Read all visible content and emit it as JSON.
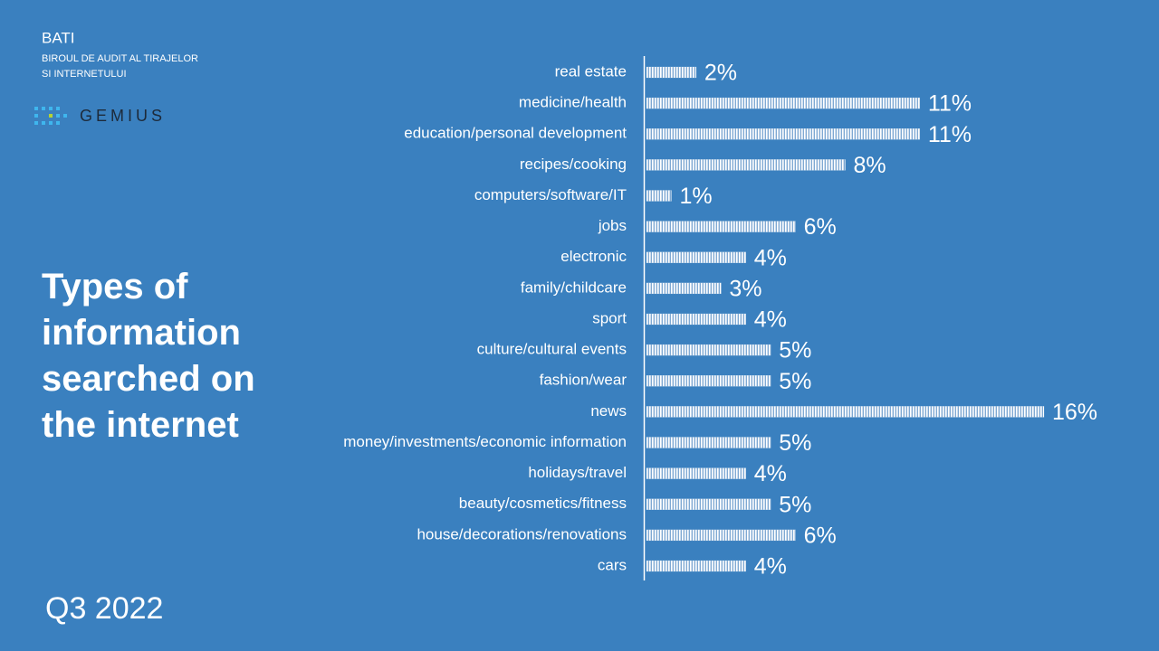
{
  "header": {
    "org": "BATI",
    "org_full": [
      "BIROUL DE AUDIT AL TIRAJELOR",
      "SI INTERNETULUI"
    ],
    "logo": "GEMIUS"
  },
  "footer": "Q3 2022",
  "chart_data": {
    "type": "hbar",
    "title": "Types of information searched on the internet",
    "categories": [
      "real estate",
      "medicine/health",
      "education/personal development",
      "recipes/cooking",
      "computers/software/IT",
      "jobs",
      "electronic",
      "family/childcare",
      "sport",
      "culture/cultural events",
      "fashion/wear",
      "news",
      "money/investments/economic information",
      "holidays/travel",
      "beauty/cosmetics/fitness",
      "house/decorations/renovations",
      "cars"
    ],
    "values": [
      2,
      11,
      11,
      8,
      1,
      6,
      4,
      3,
      4,
      5,
      5,
      16,
      5,
      4,
      5,
      6,
      4
    ],
    "value_labels": [
      "2%",
      "11%",
      "11%",
      "8%",
      "1%",
      "6%",
      "4%",
      "3%",
      "4%",
      "5%",
      "5%",
      "16%",
      "5%",
      "4%",
      "5%",
      "6%",
      "4%"
    ],
    "color": "#ffffff"
  }
}
